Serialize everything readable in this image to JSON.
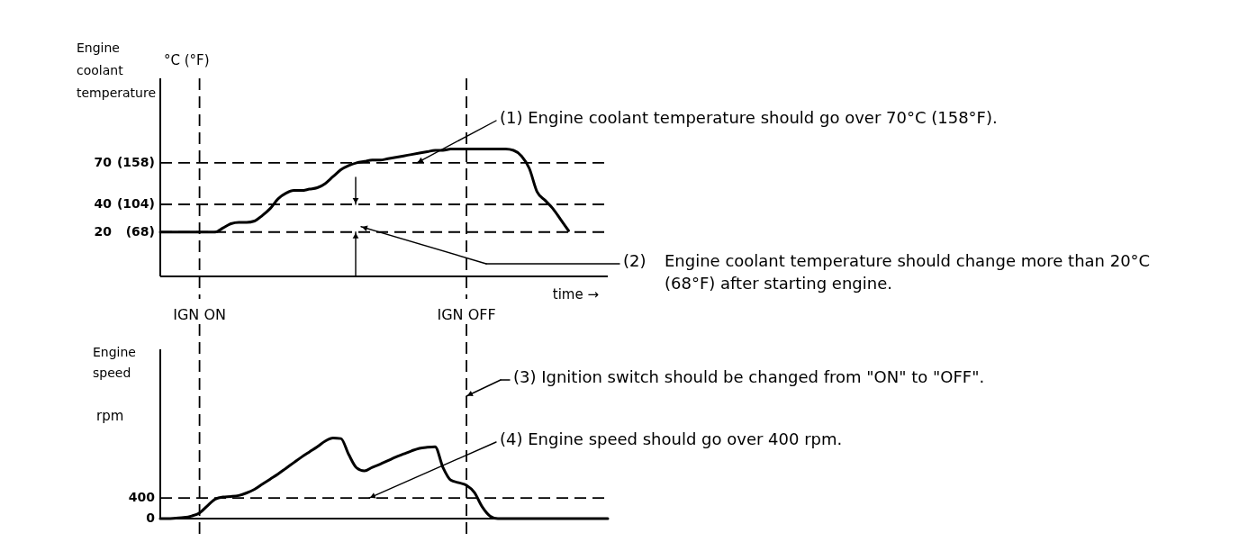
{
  "chart_data": [
    {
      "type": "line",
      "ylabel": "Engine coolant temperature",
      "xlabel": "time →",
      "categories": [
        null,
        null,
        null,
        null,
        null,
        "IGN ON",
        null,
        null,
        null,
        null,
        null,
        null,
        null,
        null,
        null,
        null,
        null,
        null,
        null,
        null,
        null,
        null,
        null,
        null,
        null,
        null,
        null,
        null,
        null,
        null,
        null,
        null,
        null,
        null,
        null,
        null,
        null,
        null,
        null,
        "IGN OFF",
        null,
        null,
        null,
        null,
        null,
        null,
        null,
        null,
        null,
        null,
        null,
        null,
        null,
        null,
        null,
        null,
        null,
        null
      ],
      "series": [
        {
          "color": "#000000",
          "values": [
            20,
            20,
            20,
            20,
            20,
            20,
            20,
            20,
            23,
            26,
            27,
            27,
            28,
            32,
            37,
            44,
            48,
            50,
            50,
            51,
            52,
            55,
            60,
            65,
            68,
            70,
            71,
            72,
            72,
            73,
            74,
            75,
            76,
            77,
            78,
            79,
            79,
            80,
            80,
            80,
            80,
            80,
            80,
            80,
            80,
            79,
            75,
            66,
            49,
            43,
            37,
            29,
            21,
            null,
            null,
            null,
            null,
            null
          ]
        }
      ],
      "ylim": [
        -12,
        131
      ],
      "yticks": [
        20,
        40,
        70
      ],
      "y2lim": [
        10,
        268
      ],
      "y2ticks": [
        {
          "value": 68,
          "label": "(68)"
        },
        {
          "value": 104,
          "label": "(104)"
        },
        {
          "value": 158,
          "label": "(158)"
        }
      ],
      "ref_lines": [
        {
          "axis": "y",
          "value": 70,
          "line_style": "dashed",
          "color": "#000000",
          "label": "(1) Engine coolant temperature should go over 70°C (158°F)."
        },
        {
          "axis": "y",
          "value": 40,
          "line_style": "dashed",
          "color": "#000000"
        },
        {
          "axis": "y",
          "value": 20,
          "line_style": "dashed",
          "color": "#000000"
        },
        {
          "axis": "x",
          "value": "IGN ON",
          "line_style": "dashed",
          "color": "#000000"
        },
        {
          "axis": "x",
          "value": "IGN OFF",
          "line_style": "dashed",
          "color": "#000000"
        }
      ],
      "annotations": [
        "°C (°F)",
        "(2) Engine coolant temperature should change more than 20°C (68°F) after starting engine."
      ],
      "grid": false,
      "marker": "none",
      "line_style": "solid"
    },
    {
      "type": "line",
      "ylabel": "Engine speed",
      "tick_labels": "y",
      "categories": [
        null,
        null,
        null,
        null,
        null,
        "IGN ON",
        null,
        null,
        null,
        null,
        null,
        null,
        null,
        null,
        null,
        null,
        null,
        null,
        null,
        null,
        null,
        null,
        null,
        null,
        null,
        null,
        null,
        null,
        null,
        null,
        null,
        null,
        null,
        null,
        null,
        null,
        null,
        null,
        null,
        "IGN OFF",
        null,
        null,
        null,
        null,
        null,
        null,
        null,
        null,
        null,
        null,
        null,
        null,
        null,
        null,
        null,
        null,
        null,
        null
      ],
      "series": [
        {
          "color": "#000000",
          "values": [
            0,
            0,
            10,
            20,
            50,
            110,
            250,
            380,
            420,
            430,
            450,
            500,
            570,
            670,
            770,
            870,
            980,
            1090,
            1200,
            1300,
            1400,
            1510,
            1570,
            1560,
            1250,
            990,
            930,
            1000,
            1060,
            1130,
            1200,
            1260,
            1320,
            1370,
            1390,
            1400,
            1000,
            750,
            700,
            650,
            510,
            230,
            50,
            0,
            0,
            0,
            0,
            0,
            0,
            0,
            0,
            0,
            0,
            0,
            0,
            0,
            0,
            0
          ]
        }
      ],
      "ylim": [
        0,
        3300
      ],
      "yticks": [
        0,
        400
      ],
      "ref_lines": [
        {
          "axis": "y",
          "value": 400,
          "line_style": "dashed",
          "color": "#000000",
          "label": "(4) Engine speed should go over 400 rpm."
        },
        {
          "axis": "x",
          "value": "IGN ON",
          "line_style": "dashed",
          "color": "#000000"
        },
        {
          "axis": "x",
          "value": "IGN OFF",
          "line_style": "dashed",
          "color": "#000000"
        }
      ],
      "annotations": [
        "rpm",
        {
          "text": "(3) Ignition switch should be changed from \"ON\" to \"OFF\".",
          "x": "IGN OFF"
        }
      ],
      "grid": false,
      "marker": "none",
      "line_style": "solid"
    }
  ]
}
